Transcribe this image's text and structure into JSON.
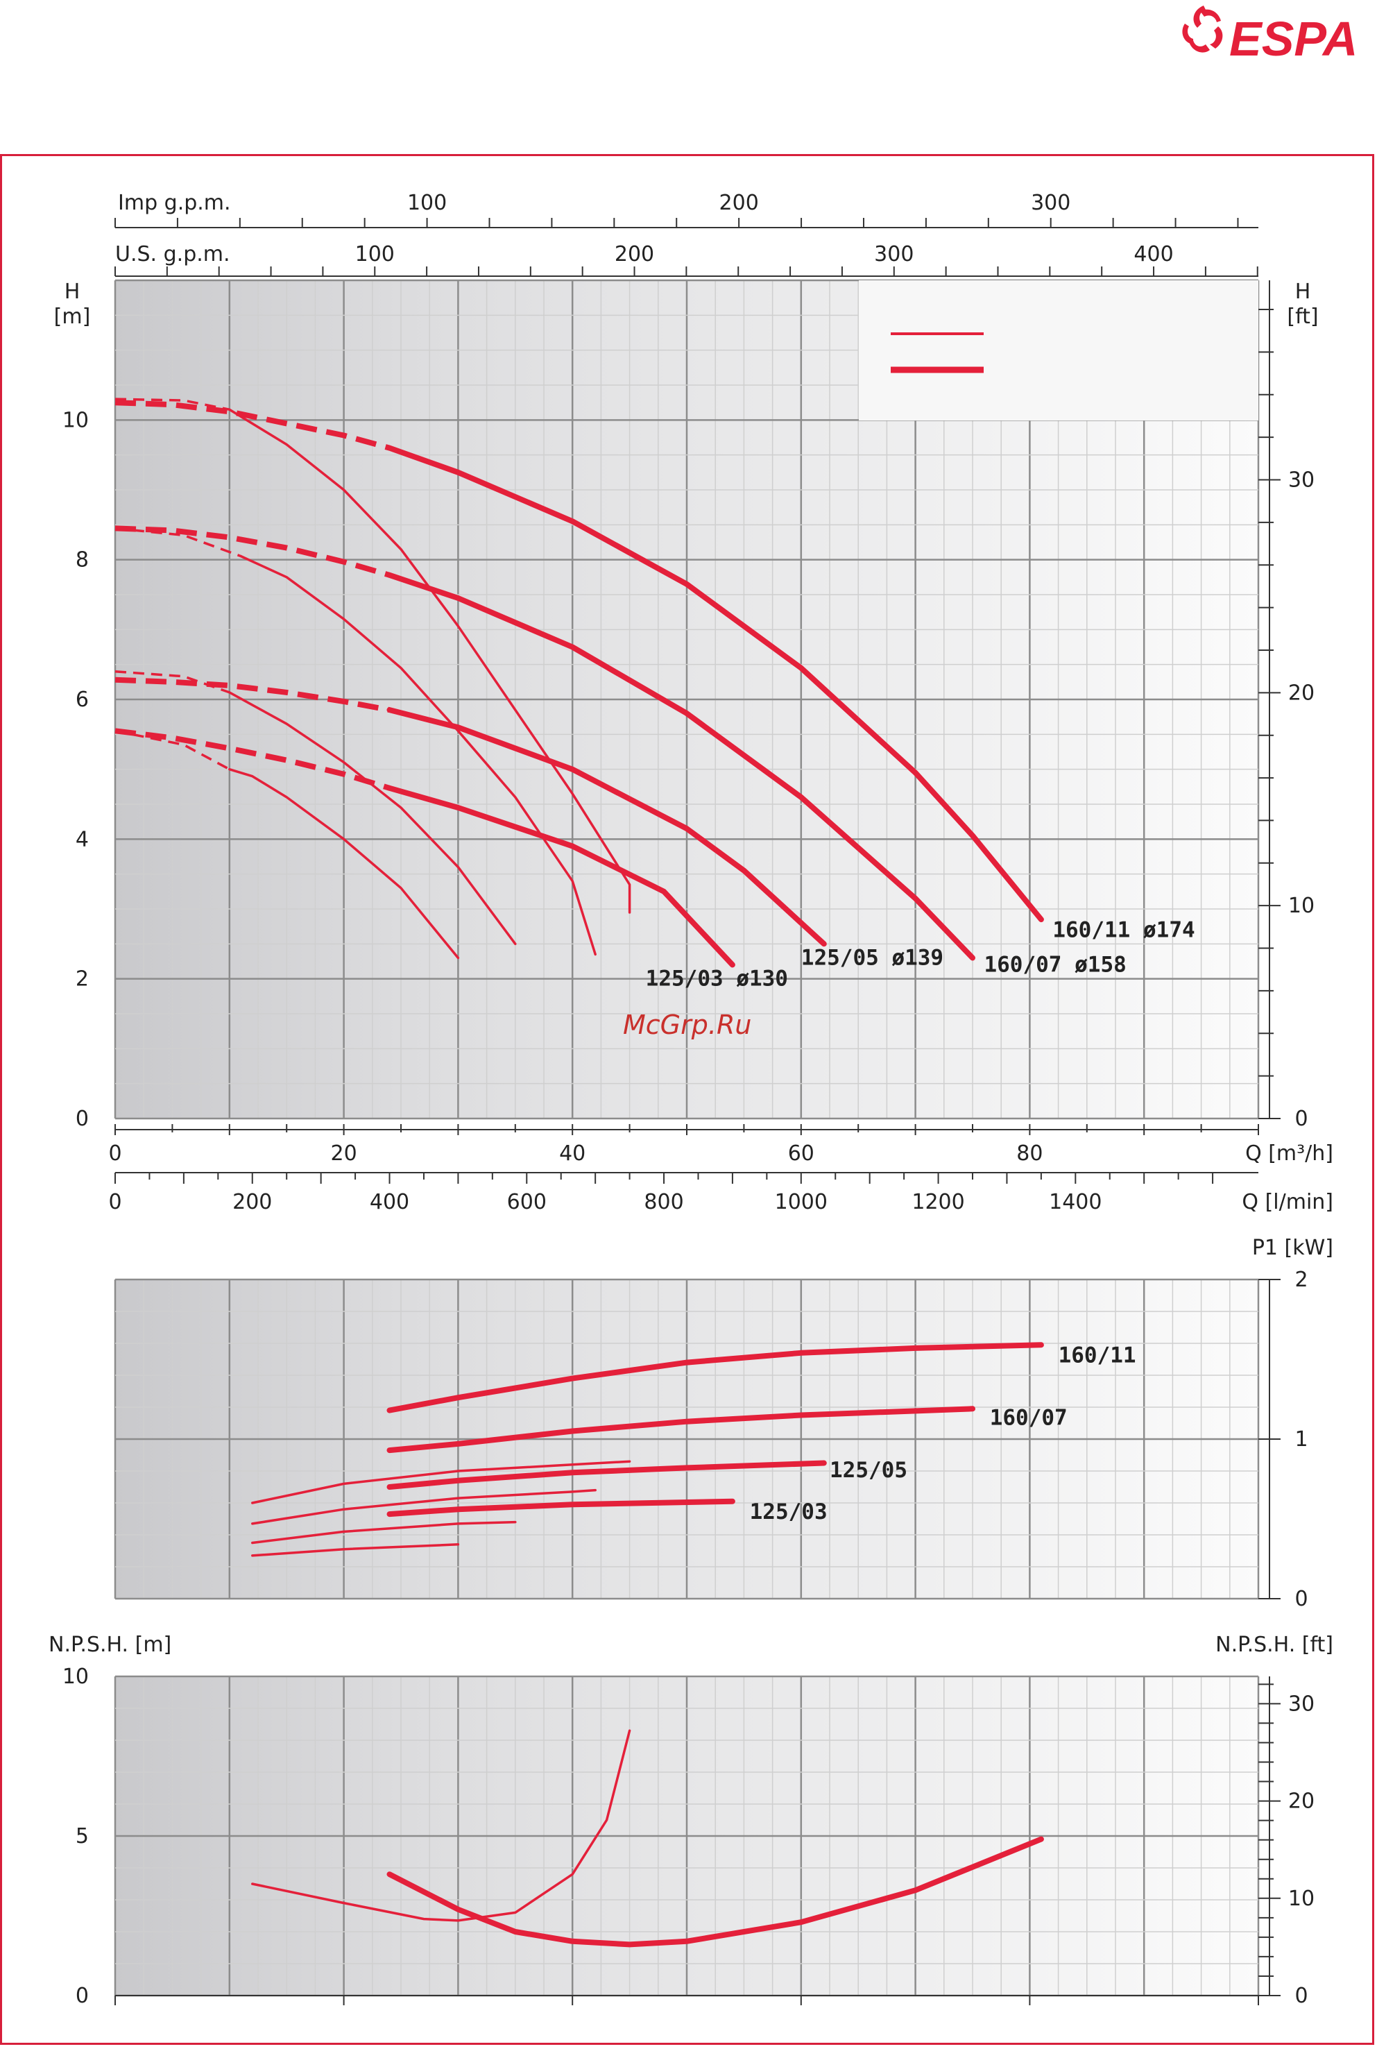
{
  "brand": {
    "name": "ESPA",
    "color": "#e4203a"
  },
  "watermark": "McGrp.Ru",
  "colors": {
    "curve": "#e4203a",
    "frame": "#d71f3b",
    "grid_dark": "#8c8c8c",
    "grid_light": "#cfcfcf"
  },
  "chart_data": [
    {
      "type": "line",
      "panel": "head",
      "xlabel": "Q [m³/h]",
      "xlabel2": "Q [l/min]",
      "ylabel_left": "H\n[m]",
      "ylabel_right": "H\n[ft]",
      "xlim": [
        0,
        100
      ],
      "ylim": [
        0,
        12
      ],
      "top_axes": [
        {
          "label": "Imp g.p.m.",
          "ticks": [
            "100",
            "200",
            "300"
          ],
          "tick_values": [
            100,
            200,
            300
          ]
        },
        {
          "label": "U.S. g.p.m.",
          "ticks": [
            "100",
            "200",
            "300",
            "400"
          ],
          "tick_values": [
            100,
            200,
            300,
            400
          ]
        }
      ],
      "x_ticks": [
        "0",
        "20",
        "40",
        "60",
        "80"
      ],
      "x_ticks_lmin": [
        "0",
        "200",
        "400",
        "600",
        "800",
        "1000",
        "1200",
        "1400"
      ],
      "y_ticks_left": [
        "0",
        "2",
        "4",
        "6",
        "8",
        "10"
      ],
      "y_ticks_right": [
        "0",
        "10",
        "20",
        "30"
      ],
      "legend_placement": "top-right",
      "series": [
        {
          "name": "160/11 ø174",
          "style": "thick",
          "dashed": [
            [
              0,
              10.25
            ],
            [
              5,
              10.22
            ],
            [
              10,
              10.12
            ],
            [
              15,
              9.95
            ],
            [
              20,
              9.78
            ],
            [
              24,
              9.6
            ]
          ],
          "points": [
            [
              24,
              9.6
            ],
            [
              30,
              9.25
            ],
            [
              40,
              8.55
            ],
            [
              50,
              7.65
            ],
            [
              60,
              6.45
            ],
            [
              70,
              4.95
            ],
            [
              75,
              4.05
            ],
            [
              81,
              2.85
            ]
          ]
        },
        {
          "name": "160/07 ø158",
          "style": "thick",
          "dashed": [
            [
              0,
              8.45
            ],
            [
              5,
              8.42
            ],
            [
              10,
              8.32
            ],
            [
              15,
              8.17
            ],
            [
              20,
              7.97
            ],
            [
              24,
              7.78
            ]
          ],
          "points": [
            [
              24,
              7.78
            ],
            [
              30,
              7.45
            ],
            [
              40,
              6.75
            ],
            [
              50,
              5.8
            ],
            [
              60,
              4.6
            ],
            [
              70,
              3.15
            ],
            [
              75,
              2.3
            ]
          ]
        },
        {
          "name": "125/05 ø139",
          "style": "thick",
          "dashed": [
            [
              0,
              6.28
            ],
            [
              5,
              6.25
            ],
            [
              10,
              6.2
            ],
            [
              15,
              6.1
            ],
            [
              20,
              5.97
            ],
            [
              24,
              5.85
            ]
          ],
          "points": [
            [
              24,
              5.85
            ],
            [
              30,
              5.6
            ],
            [
              40,
              5.0
            ],
            [
              50,
              4.15
            ],
            [
              55,
              3.55
            ],
            [
              62,
              2.5
            ]
          ]
        },
        {
          "name": "125/03 ø130",
          "style": "thick",
          "dashed": [
            [
              0,
              5.55
            ],
            [
              5,
              5.45
            ],
            [
              10,
              5.3
            ],
            [
              15,
              5.13
            ],
            [
              20,
              4.93
            ],
            [
              24,
              4.73
            ]
          ],
          "points": [
            [
              24,
              4.73
            ],
            [
              30,
              4.45
            ],
            [
              40,
              3.9
            ],
            [
              48,
              3.25
            ],
            [
              54,
              2.2
            ]
          ]
        },
        {
          "name": "",
          "style": "thin",
          "dashed": [
            [
              0,
              10.3
            ],
            [
              6,
              10.28
            ],
            [
              10,
              10.15
            ]
          ],
          "points": [
            [
              10,
              10.15
            ],
            [
              15,
              9.65
            ],
            [
              20,
              9.0
            ],
            [
              25,
              8.15
            ],
            [
              30,
              7.05
            ],
            [
              35,
              5.85
            ],
            [
              40,
              4.65
            ],
            [
              45,
              3.35
            ],
            [
              45,
              2.95
            ]
          ]
        },
        {
          "name": "",
          "style": "thin",
          "dashed": [
            [
              0,
              8.45
            ],
            [
              6,
              8.35
            ],
            [
              11,
              8.05
            ]
          ],
          "points": [
            [
              11,
              8.05
            ],
            [
              15,
              7.75
            ],
            [
              20,
              7.15
            ],
            [
              25,
              6.45
            ],
            [
              30,
              5.55
            ],
            [
              35,
              4.6
            ],
            [
              40,
              3.4
            ],
            [
              42,
              2.35
            ]
          ]
        },
        {
          "name": "",
          "style": "thin",
          "dashed": [
            [
              0,
              6.4
            ],
            [
              6,
              6.33
            ],
            [
              10,
              6.1
            ]
          ],
          "points": [
            [
              10,
              6.1
            ],
            [
              15,
              5.65
            ],
            [
              20,
              5.1
            ],
            [
              25,
              4.45
            ],
            [
              30,
              3.6
            ],
            [
              35,
              2.5
            ]
          ]
        },
        {
          "name": "",
          "style": "thin",
          "dashed": [
            [
              0,
              5.55
            ],
            [
              6,
              5.35
            ],
            [
              10,
              5.0
            ]
          ],
          "points": [
            [
              10,
              5.0
            ],
            [
              12,
              4.9
            ],
            [
              15,
              4.6
            ],
            [
              20,
              4.0
            ],
            [
              25,
              3.3
            ],
            [
              30,
              2.3
            ]
          ]
        }
      ],
      "curve_labels": [
        {
          "text": "160/11  ø174",
          "x": 82,
          "y": 2.6
        },
        {
          "text": "160/07  ø158",
          "x": 76,
          "y": 2.1
        },
        {
          "text": "125/05  ø139",
          "x": 60,
          "y": 2.2
        },
        {
          "text": "125/03  ø130",
          "x": 46.4,
          "y": 1.9
        }
      ]
    },
    {
      "type": "line",
      "panel": "power",
      "ylabel_right": "P1 [kW]",
      "xlim": [
        0,
        100
      ],
      "ylim": [
        0,
        2
      ],
      "y_ticks_right": [
        "0",
        "1",
        "2"
      ],
      "series": [
        {
          "name": "160/11",
          "style": "thick",
          "points": [
            [
              24,
              1.18
            ],
            [
              30,
              1.26
            ],
            [
              40,
              1.38
            ],
            [
              50,
              1.48
            ],
            [
              60,
              1.54
            ],
            [
              70,
              1.57
            ],
            [
              81,
              1.59
            ]
          ]
        },
        {
          "name": "160/07",
          "style": "thick",
          "points": [
            [
              24,
              0.93
            ],
            [
              30,
              0.97
            ],
            [
              40,
              1.05
            ],
            [
              50,
              1.11
            ],
            [
              60,
              1.15
            ],
            [
              75,
              1.19
            ]
          ]
        },
        {
          "name": "125/05",
          "style": "thick",
          "points": [
            [
              24,
              0.7
            ],
            [
              30,
              0.74
            ],
            [
              40,
              0.79
            ],
            [
              50,
              0.82
            ],
            [
              62,
              0.85
            ]
          ]
        },
        {
          "name": "125/03",
          "style": "thick",
          "points": [
            [
              24,
              0.53
            ],
            [
              30,
              0.56
            ],
            [
              40,
              0.59
            ],
            [
              54,
              0.61
            ]
          ]
        },
        {
          "name": "",
          "style": "thin",
          "points": [
            [
              12,
              0.6
            ],
            [
              20,
              0.72
            ],
            [
              30,
              0.8
            ],
            [
              40,
              0.84
            ],
            [
              45,
              0.86
            ]
          ]
        },
        {
          "name": "",
          "style": "thin",
          "points": [
            [
              12,
              0.47
            ],
            [
              20,
              0.56
            ],
            [
              30,
              0.63
            ],
            [
              40,
              0.67
            ],
            [
              42,
              0.68
            ]
          ]
        },
        {
          "name": "",
          "style": "thin",
          "points": [
            [
              12,
              0.35
            ],
            [
              20,
              0.42
            ],
            [
              30,
              0.47
            ],
            [
              35,
              0.48
            ]
          ]
        },
        {
          "name": "",
          "style": "thin",
          "points": [
            [
              12,
              0.27
            ],
            [
              20,
              0.31
            ],
            [
              30,
              0.34
            ]
          ]
        }
      ],
      "curve_labels": [
        {
          "text": "160/11",
          "x": 82.5,
          "y": 1.48
        },
        {
          "text": "160/07",
          "x": 76.5,
          "y": 1.09
        },
        {
          "text": "125/05",
          "x": 62.5,
          "y": 0.76
        },
        {
          "text": "125/03",
          "x": 55.5,
          "y": 0.5
        }
      ]
    },
    {
      "type": "line",
      "panel": "npsh",
      "ylabel_left": "N.P.S.H. [m]",
      "ylabel_right": "N.P.S.H. [ft]",
      "xlim": [
        0,
        100
      ],
      "ylim": [
        0,
        10
      ],
      "y_ticks_left": [
        "0",
        "5",
        "10"
      ],
      "y_ticks_right": [
        "0",
        "10",
        "20",
        "30"
      ],
      "series": [
        {
          "name": "",
          "style": "thick",
          "points": [
            [
              24,
              3.8
            ],
            [
              30,
              2.7
            ],
            [
              35,
              2.0
            ],
            [
              40,
              1.7
            ],
            [
              45,
              1.6
            ],
            [
              50,
              1.7
            ],
            [
              60,
              2.3
            ],
            [
              70,
              3.3
            ],
            [
              81,
              4.9
            ]
          ]
        },
        {
          "name": "",
          "style": "thin",
          "points": [
            [
              12,
              3.5
            ],
            [
              20,
              2.9
            ],
            [
              27,
              2.4
            ],
            [
              30,
              2.35
            ],
            [
              35,
              2.6
            ],
            [
              40,
              3.8
            ],
            [
              43,
              5.5
            ],
            [
              45,
              8.3
            ]
          ]
        }
      ]
    }
  ]
}
